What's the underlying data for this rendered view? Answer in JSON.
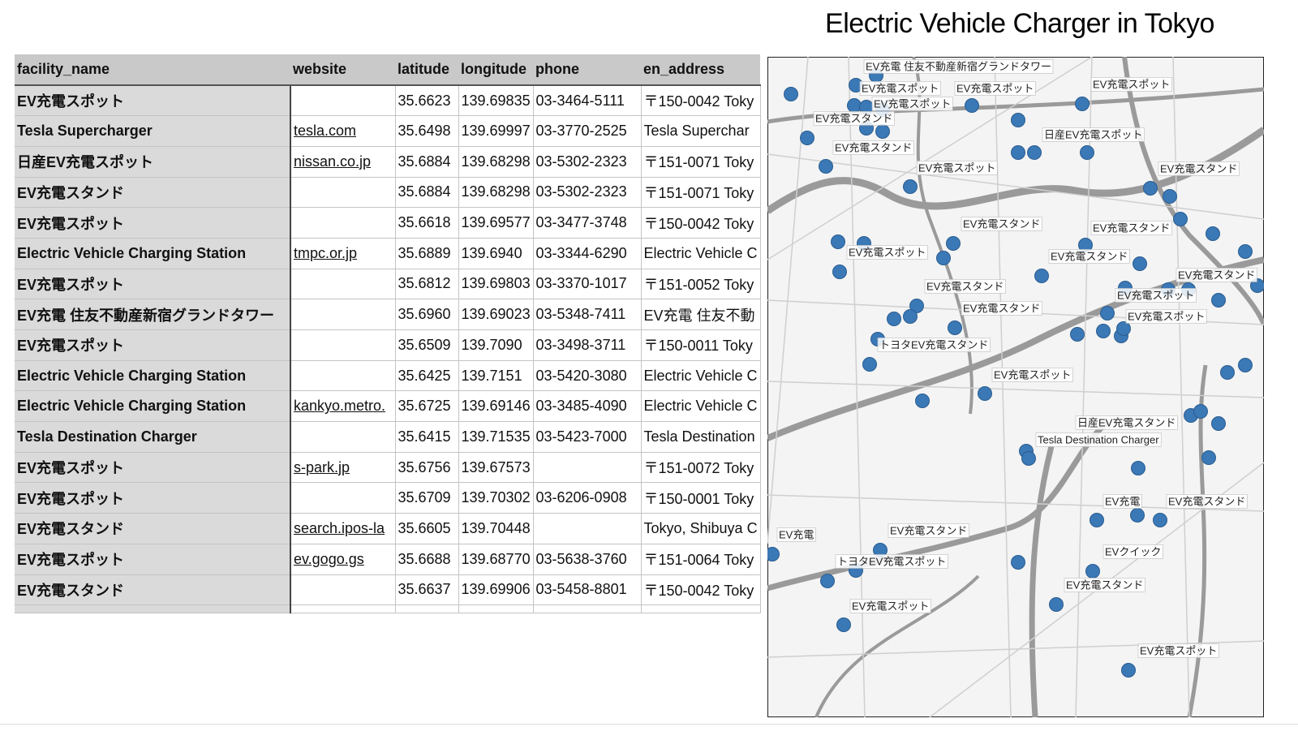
{
  "title": "Electric Vehicle Charger in Tokyo",
  "table": {
    "columns": [
      "facility_name",
      "website",
      "latitude",
      "longitude",
      "phone",
      "en_address"
    ],
    "rows": [
      [
        "EV充電スポット",
        null,
        "35.6623",
        "139.69835",
        "03-3464-5111",
        "〒150-0042 Toky"
      ],
      [
        "Tesla Supercharger",
        "tesla.com",
        "35.6498",
        "139.69997",
        "03-3770-2525",
        "Tesla Superchar"
      ],
      [
        "日産EV充電スポット",
        "nissan.co.jp",
        "35.6884",
        "139.68298",
        "03-5302-2323",
        "〒151-0071 Toky"
      ],
      [
        "EV充電スタンド",
        null,
        "35.6884",
        "139.68298",
        "03-5302-2323",
        "〒151-0071 Toky"
      ],
      [
        "EV充電スポット",
        null,
        "35.6618",
        "139.69577",
        "03-3477-3748",
        "〒150-0042 Toky"
      ],
      [
        "Electric Vehicle Charging Station",
        "tmpc.or.jp",
        "35.6889",
        "139.6940",
        "03-3344-6290",
        "Electric Vehicle C"
      ],
      [
        "EV充電スポット",
        null,
        "35.6812",
        "139.69803",
        "03-3370-1017",
        "〒151-0052 Toky"
      ],
      [
        "EV充電 住友不動産新宿グランドタワー",
        null,
        "35.6960",
        "139.69023",
        "03-5348-7411",
        "EV充電 住友不動"
      ],
      [
        "EV充電スポット",
        null,
        "35.6509",
        "139.7090",
        "03-3498-3711",
        "〒150-0011 Toky"
      ],
      [
        "Electric Vehicle Charging Station",
        null,
        "35.6425",
        "139.7151",
        "03-5420-3080",
        "Electric Vehicle C"
      ],
      [
        "Electric Vehicle Charging Station",
        "kankyo.metro.",
        "35.6725",
        "139.69146",
        "03-3485-4090",
        "Electric Vehicle C"
      ],
      [
        "Tesla Destination Charger",
        null,
        "35.6415",
        "139.71535",
        "03-5423-7000",
        "Tesla Destination"
      ],
      [
        "EV充電スポット",
        "s-park.jp",
        "35.6756",
        "139.67573",
        null,
        "〒151-0072 Toky"
      ],
      [
        "EV充電スポット",
        null,
        "35.6709",
        "139.70302",
        "03-6206-0908",
        "〒150-0001 Toky"
      ],
      [
        "EV充電スタンド",
        "search.ipos-la",
        "35.6605",
        "139.70448",
        null,
        "Tokyo, Shibuya C"
      ],
      [
        "EV充電スポット",
        "ev.gogo.gs",
        "35.6688",
        "139.68770",
        "03-5638-3760",
        "〒151-0064 Toky"
      ],
      [
        "EV充電スタンド",
        null,
        "35.6637",
        "139.69906",
        "03-5458-8801",
        "〒150-0042 Toky"
      ]
    ]
  },
  "map": {
    "labels": [
      "EV充電 住友不動産新宿グランドタワー",
      "EV充電スポット",
      "EV充電スポット",
      "EV充電スポット",
      "EV充電スポット",
      "EV充電スタンド",
      "日産EV充電スポット",
      "EV充電スタンド",
      "EV充電スポット",
      "EV充電スタンド",
      "EV充電スタンド",
      "EV充電スタンド",
      "EV充電スポット",
      "EV充電スタンド",
      "EV充電スタンド",
      "EV充電スタンド",
      "EV充電スポット",
      "EV充電スタンド",
      "EV充電スポット",
      "トヨタEV充電スタンド",
      "EV充電スポット",
      "日産EV充電スタンド",
      "Tesla Destination Charger",
      "EV充電",
      "EV充電スタンド",
      "EV充電",
      "EV充電スタンド",
      "EVクイック",
      "トヨタEV充電スポット",
      "EV充電スタンド",
      "EV充電スポット",
      "EV充電スポット"
    ]
  }
}
